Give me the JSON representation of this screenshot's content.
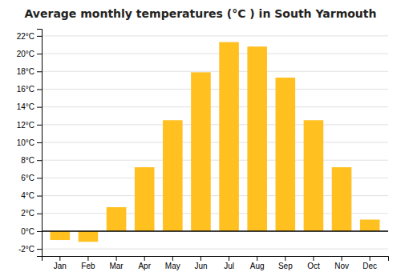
{
  "chart_data": {
    "type": "bar",
    "title": "Average monthly temperatures (°C ) in South Yarmouth",
    "categories": [
      "Jan",
      "Feb",
      "Mar",
      "Apr",
      "May",
      "Jun",
      "Jul",
      "Aug",
      "Sep",
      "Oct",
      "Nov",
      "Dec"
    ],
    "values": [
      -1.0,
      -1.2,
      2.7,
      7.2,
      12.5,
      17.9,
      21.3,
      20.8,
      17.3,
      12.5,
      7.2,
      1.3
    ],
    "color": "#FFC020",
    "ylim": [
      -2.8,
      22.8
    ],
    "yticks": [
      {
        "value": -2,
        "label": "-2°C"
      },
      {
        "value": 0,
        "label": "0°C"
      },
      {
        "value": 2,
        "label": "2°C"
      },
      {
        "value": 4,
        "label": "4°C"
      },
      {
        "value": 6,
        "label": "6°C"
      },
      {
        "value": 8,
        "label": "8°C"
      },
      {
        "value": 10,
        "label": "10°C"
      },
      {
        "value": 12,
        "label": "12°C"
      },
      {
        "value": 14,
        "label": "14°C"
      },
      {
        "value": 16,
        "label": "16°C"
      },
      {
        "value": 18,
        "label": "18°C"
      },
      {
        "value": 20,
        "label": "20°C"
      },
      {
        "value": 22,
        "label": "22°C"
      }
    ],
    "grid": true
  }
}
